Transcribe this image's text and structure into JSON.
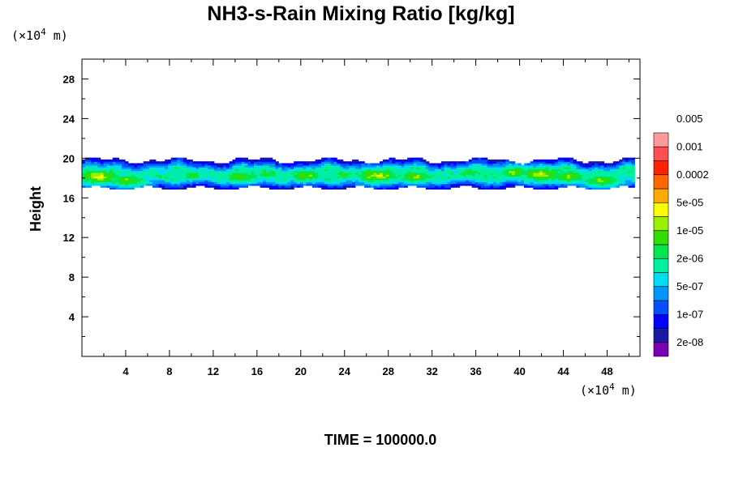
{
  "chart_data": {
    "type": "heatmap",
    "title": "NH3-s-Rain Mixing Ratio [kg/kg]",
    "xlabel": "",
    "ylabel": "Height",
    "x_unit_prefix": "(×10",
    "x_unit_exp": "4",
    "x_unit_suffix": " m)",
    "y_unit_prefix": "(×10",
    "y_unit_exp": "4",
    "y_unit_suffix": " m)",
    "xlim": [
      0,
      51
    ],
    "ylim": [
      0,
      30
    ],
    "x_ticks": [
      4,
      8,
      12,
      16,
      20,
      24,
      28,
      32,
      36,
      40,
      44,
      48
    ],
    "y_ticks": [
      4,
      8,
      12,
      16,
      20,
      24,
      28
    ],
    "footer": "TIME = 100000.0",
    "colorbar": {
      "colors": [
        "#7b00b4",
        "#1a1aa0",
        "#0000ff",
        "#0050ff",
        "#0096ff",
        "#00dcf0",
        "#00f0a0",
        "#00e650",
        "#33dd00",
        "#99f000",
        "#ffff00",
        "#ffaa00",
        "#ff6600",
        "#ff2200",
        "#ff5050",
        "#ff9a9a"
      ],
      "labels": [
        "2e-08",
        "1e-07",
        "5e-07",
        "2e-06",
        "1e-05",
        "5e-05",
        "0.0002",
        "0.001",
        "0.005"
      ]
    },
    "field": {
      "layer_bottom": 17.0,
      "layer_top": 19.8,
      "x_start": 0,
      "x_end": 50.5,
      "cores": [
        {
          "x": 1.5,
          "z": 18.2,
          "level": 10
        },
        {
          "x": 4.2,
          "z": 17.8,
          "level": 9
        },
        {
          "x": 10.0,
          "z": 18.3,
          "level": 8
        },
        {
          "x": 14.5,
          "z": 18.2,
          "level": 9
        },
        {
          "x": 17.0,
          "z": 18.5,
          "level": 8
        },
        {
          "x": 20.5,
          "z": 18.3,
          "level": 9
        },
        {
          "x": 24.0,
          "z": 18.4,
          "level": 8
        },
        {
          "x": 27.0,
          "z": 18.3,
          "level": 10
        },
        {
          "x": 30.5,
          "z": 18.2,
          "level": 9
        },
        {
          "x": 35.5,
          "z": 18.6,
          "level": 8
        },
        {
          "x": 37.0,
          "z": 18.3,
          "level": 7
        },
        {
          "x": 39.5,
          "z": 18.6,
          "level": 9
        },
        {
          "x": 42.0,
          "z": 18.4,
          "level": 10
        },
        {
          "x": 44.5,
          "z": 18.2,
          "level": 9
        },
        {
          "x": 47.5,
          "z": 17.8,
          "level": 9
        }
      ]
    }
  }
}
